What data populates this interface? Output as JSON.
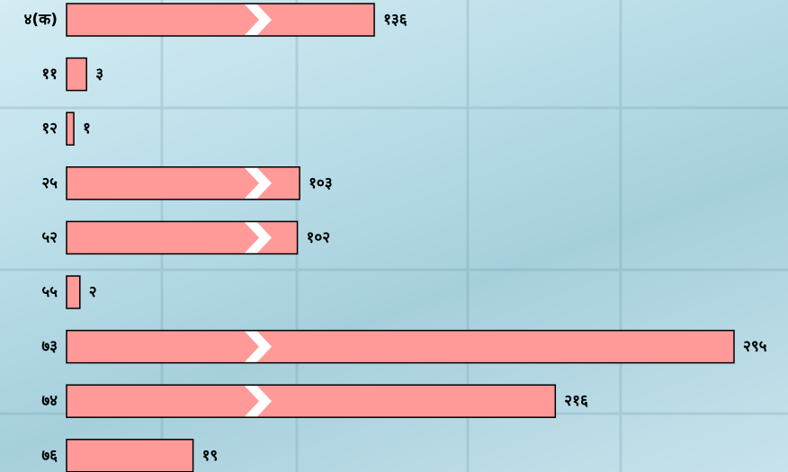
{
  "chart_data": {
    "type": "bar",
    "orientation": "horizontal",
    "color": "#ff9a98",
    "categories": [
      "४(क)",
      "११",
      "१२",
      "२५",
      "५२",
      "५५",
      "७३",
      "७४",
      "७६"
    ],
    "values": [
      136,
      3,
      1,
      103,
      102,
      2,
      295,
      216,
      19
    ],
    "value_labels": [
      "१३६",
      "३",
      "१",
      "१०३",
      "१०२",
      "२",
      "२९५",
      "२१६",
      "१९"
    ],
    "scale_break": true
  }
}
